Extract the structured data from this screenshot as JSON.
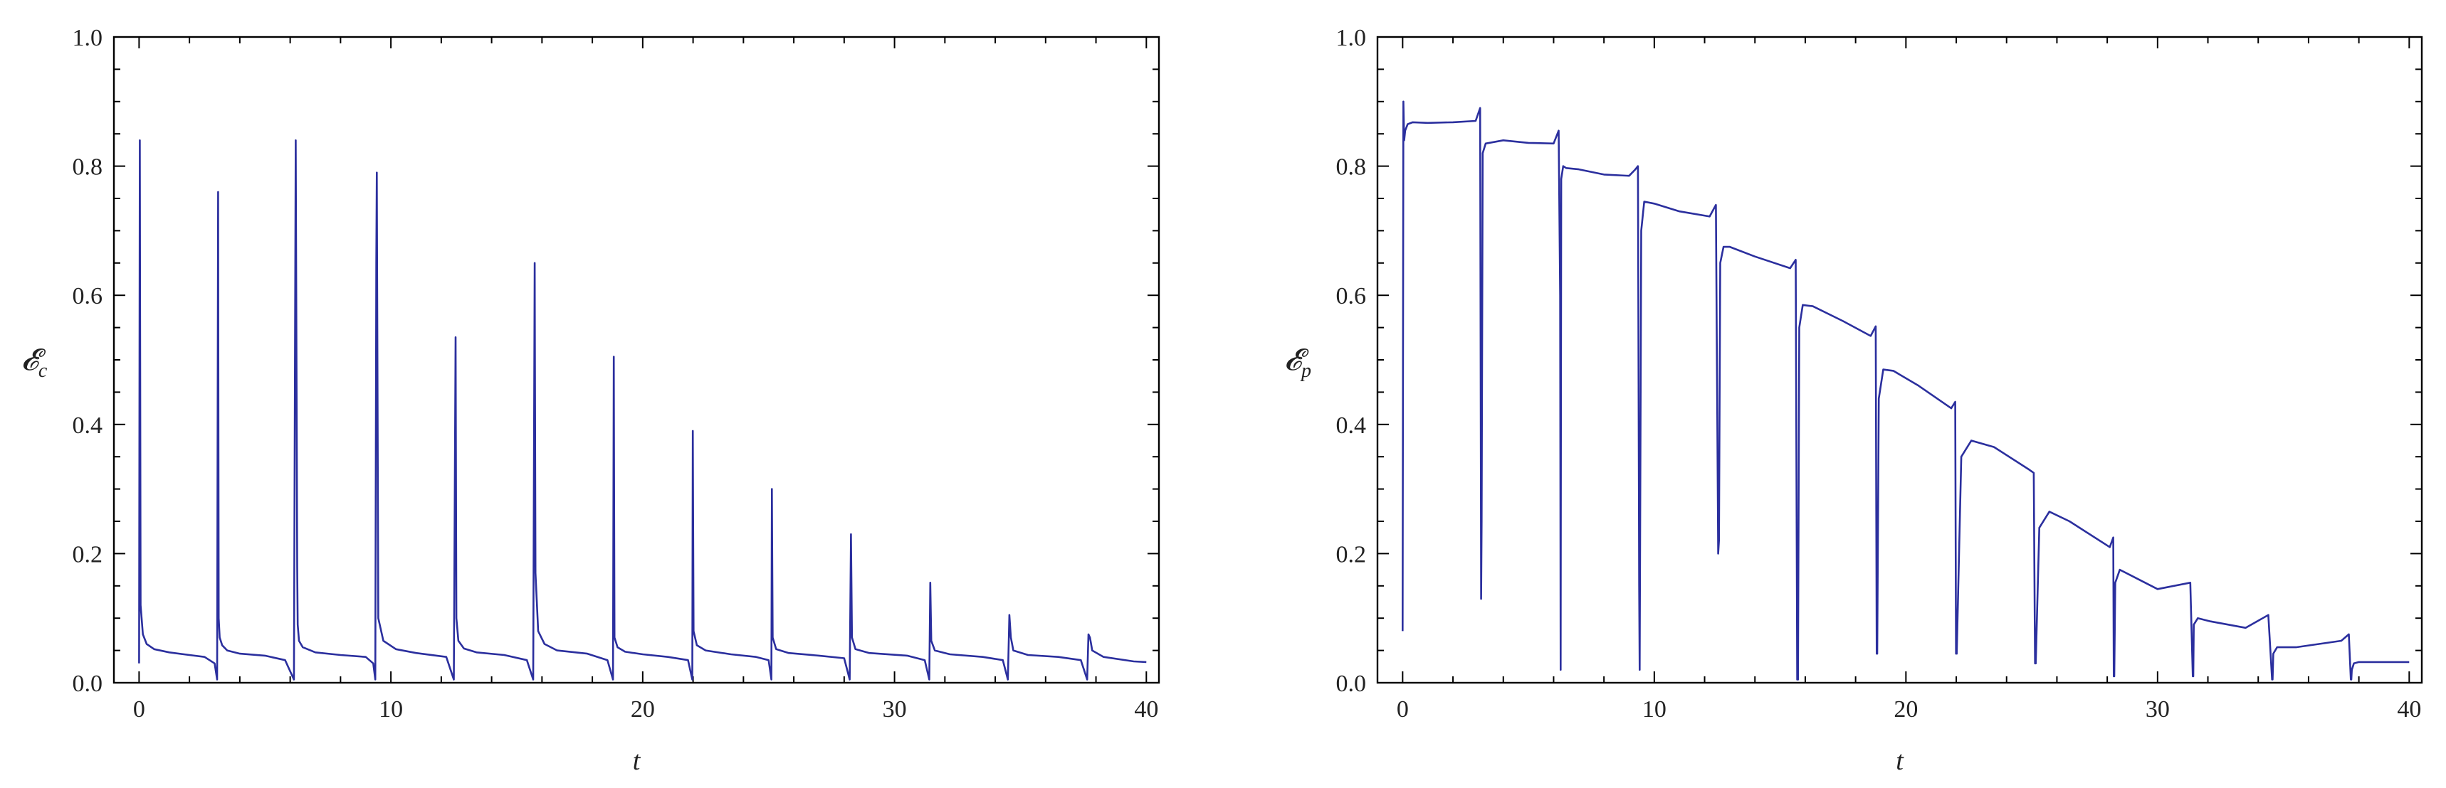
{
  "colors": {
    "series": "#2b2f9e",
    "axes": "#000000",
    "text": "#222222"
  },
  "chart_data": [
    {
      "type": "line",
      "title": "",
      "xlabel": "t",
      "ylabel": "𝓔",
      "ylabel_sub": "c",
      "xlim": [
        -1,
        40.5
      ],
      "ylim": [
        0,
        1
      ],
      "xticks": [
        0,
        10,
        20,
        30,
        40
      ],
      "xtick_labels": [
        "0",
        "10",
        "20",
        "30",
        "40"
      ],
      "yticks": [
        0,
        0.2,
        0.4,
        0.6,
        0.8,
        1.0
      ],
      "ytick_labels": [
        "0.0",
        "0.2",
        "0.4",
        "0.6",
        "0.8",
        "1.0"
      ],
      "grid": false,
      "series": [
        {
          "x": [
            0.0,
            0.03,
            0.06,
            0.15,
            0.3,
            0.6,
            1.2,
            2.0,
            2.6,
            3.0,
            3.1,
            3.14,
            3.16,
            3.2,
            3.3,
            3.5,
            4.0,
            5.0,
            5.8,
            6.15,
            6.22,
            6.28,
            6.3,
            6.35,
            6.5,
            7.0,
            8.0,
            9.0,
            9.3,
            9.38,
            9.42,
            9.44,
            9.5,
            9.7,
            10.2,
            11.0,
            12.2,
            12.5,
            12.57,
            12.6,
            12.68,
            12.9,
            13.4,
            14.5,
            15.4,
            15.65,
            15.71,
            15.74,
            15.85,
            16.1,
            16.6,
            17.8,
            18.6,
            18.82,
            18.85,
            18.88,
            19.0,
            19.3,
            20.0,
            21.0,
            21.8,
            21.97,
            21.99,
            22.02,
            22.15,
            22.5,
            23.5,
            24.5,
            25.0,
            25.11,
            25.13,
            25.16,
            25.3,
            25.8,
            27.0,
            28.0,
            28.22,
            28.27,
            28.31,
            28.45,
            29.0,
            30.5,
            31.2,
            31.38,
            31.42,
            31.46,
            31.6,
            32.2,
            33.5,
            34.3,
            34.5,
            34.56,
            34.62,
            34.72,
            35.3,
            36.5,
            37.4,
            37.65,
            37.7,
            37.76,
            37.85,
            38.3,
            39.5,
            40.0
          ],
          "y": [
            0.03,
            0.84,
            0.12,
            0.075,
            0.06,
            0.052,
            0.047,
            0.043,
            0.04,
            0.03,
            0.005,
            0.76,
            0.1,
            0.07,
            0.058,
            0.05,
            0.045,
            0.042,
            0.035,
            0.005,
            0.84,
            0.18,
            0.09,
            0.065,
            0.055,
            0.047,
            0.043,
            0.04,
            0.03,
            0.005,
            0.65,
            0.79,
            0.1,
            0.065,
            0.052,
            0.046,
            0.04,
            0.005,
            0.535,
            0.1,
            0.065,
            0.053,
            0.047,
            0.043,
            0.035,
            0.005,
            0.65,
            0.17,
            0.08,
            0.06,
            0.05,
            0.045,
            0.035,
            0.005,
            0.505,
            0.07,
            0.055,
            0.048,
            0.044,
            0.04,
            0.035,
            0.005,
            0.39,
            0.08,
            0.058,
            0.05,
            0.044,
            0.04,
            0.035,
            0.005,
            0.3,
            0.07,
            0.052,
            0.046,
            0.042,
            0.038,
            0.005,
            0.23,
            0.07,
            0.052,
            0.046,
            0.042,
            0.035,
            0.005,
            0.155,
            0.065,
            0.05,
            0.044,
            0.04,
            0.035,
            0.005,
            0.105,
            0.07,
            0.05,
            0.043,
            0.04,
            0.035,
            0.005,
            0.075,
            0.07,
            0.05,
            0.04,
            0.033,
            0.032
          ]
        }
      ]
    },
    {
      "type": "line",
      "title": "",
      "xlabel": "t",
      "ylabel": "𝓔",
      "ylabel_sub": "p",
      "xlim": [
        -1,
        40.5
      ],
      "ylim": [
        0,
        1
      ],
      "xticks": [
        0,
        10,
        20,
        30,
        40
      ],
      "xtick_labels": [
        "0",
        "10",
        "20",
        "30",
        "40"
      ],
      "yticks": [
        0,
        0.2,
        0.4,
        0.6,
        0.8,
        1.0
      ],
      "ytick_labels": [
        "0.0",
        "0.2",
        "0.4",
        "0.6",
        "0.8",
        "1.0"
      ],
      "grid": false,
      "series": [
        {
          "x": [
            0.0,
            0.03,
            0.06,
            0.1,
            0.2,
            0.4,
            1.0,
            2.0,
            2.9,
            3.08,
            3.12,
            3.14,
            3.18,
            3.3,
            4.0,
            5.0,
            6.0,
            6.2,
            6.26,
            6.28,
            6.3,
            6.38,
            6.5,
            7.0,
            8.0,
            9.0,
            9.25,
            9.35,
            9.4,
            9.42,
            9.48,
            9.6,
            10.0,
            11.0,
            12.2,
            12.45,
            12.54,
            12.57,
            12.62,
            12.75,
            13.0,
            14.0,
            15.4,
            15.62,
            15.68,
            15.71,
            15.76,
            15.9,
            16.3,
            17.5,
            18.6,
            18.8,
            18.84,
            18.86,
            18.92,
            19.1,
            19.5,
            20.5,
            21.8,
            21.96,
            21.99,
            22.02,
            22.2,
            22.6,
            23.5,
            24.9,
            25.08,
            25.13,
            25.16,
            25.3,
            25.7,
            26.5,
            28.1,
            28.24,
            28.26,
            28.28,
            28.32,
            28.5,
            29.0,
            30.0,
            31.3,
            31.4,
            31.42,
            31.44,
            31.6,
            32.1,
            33.5,
            34.4,
            34.55,
            34.57,
            34.6,
            34.75,
            35.5,
            37.3,
            37.6,
            37.68,
            37.7,
            37.72,
            37.8,
            38.0,
            39.5,
            40.0
          ],
          "y": [
            0.08,
            0.9,
            0.84,
            0.855,
            0.865,
            0.868,
            0.867,
            0.868,
            0.87,
            0.89,
            0.13,
            0.25,
            0.82,
            0.835,
            0.84,
            0.836,
            0.835,
            0.855,
            0.6,
            0.02,
            0.78,
            0.8,
            0.797,
            0.795,
            0.787,
            0.785,
            0.795,
            0.8,
            0.15,
            0.02,
            0.7,
            0.745,
            0.742,
            0.73,
            0.722,
            0.74,
            0.2,
            0.22,
            0.65,
            0.675,
            0.675,
            0.66,
            0.642,
            0.655,
            0.005,
            0.005,
            0.55,
            0.585,
            0.583,
            0.56,
            0.537,
            0.552,
            0.045,
            0.045,
            0.44,
            0.485,
            0.483,
            0.46,
            0.425,
            0.435,
            0.045,
            0.045,
            0.35,
            0.375,
            0.365,
            0.33,
            0.325,
            0.03,
            0.03,
            0.24,
            0.265,
            0.25,
            0.21,
            0.225,
            0.01,
            0.01,
            0.155,
            0.175,
            0.165,
            0.145,
            0.155,
            0.01,
            0.01,
            0.09,
            0.1,
            0.095,
            0.085,
            0.105,
            0.005,
            0.005,
            0.045,
            0.055,
            0.055,
            0.065,
            0.075,
            0.005,
            0.005,
            0.02,
            0.03,
            0.032,
            0.032,
            0.032
          ]
        }
      ]
    }
  ]
}
